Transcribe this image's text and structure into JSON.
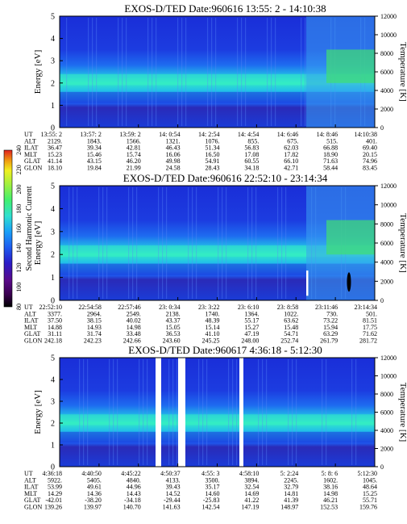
{
  "chart_data": [
    {
      "type": "heatmap",
      "title": "EXOS-D/TED   Date:960616  13:55: 2 - 14:10:38",
      "ylabel": "Energy [eV]",
      "y2label": "Temperature [K]",
      "ylim": [
        0,
        5
      ],
      "y2lim": [
        0,
        12000
      ],
      "yticks": [
        "0",
        "1",
        "2",
        "3",
        "4",
        "5"
      ],
      "y2ticks": [
        "0",
        "2000",
        "4000",
        "6000",
        "8000",
        "10000",
        "12000"
      ],
      "row_labels": [
        "UT",
        "ALT",
        "ILAT",
        "MLT",
        "GLAT",
        "GLON"
      ],
      "columns": [
        [
          "13:55: 2",
          "2129.",
          "36.47",
          "15.23",
          "41.14",
          "18.10"
        ],
        [
          "13:57: 2",
          "1843.",
          "39.34",
          "15.46",
          "43.15",
          "19.84"
        ],
        [
          "13:59: 2",
          "1566.",
          "42.81",
          "15.74",
          "46.20",
          "21.99"
        ],
        [
          "14: 0:54",
          "1321.",
          "46.43",
          "16.06",
          "49.98",
          "24.58"
        ],
        [
          "14: 2:54",
          "1076.",
          "51.34",
          "16.50",
          "54.91",
          "28.43"
        ],
        [
          "14: 4:54",
          "855.",
          "56.83",
          "17.08",
          "60.55",
          "34.18"
        ],
        [
          "14: 6:46",
          "675.",
          "62.03",
          "17.82",
          "66.10",
          "42.71"
        ],
        [
          "14: 8:46",
          "515.",
          "66.88",
          "18.90",
          "71.63",
          "58.44"
        ],
        [
          "14:10:38",
          "401.",
          "69.40",
          "20.15",
          "74.96",
          "83.45"
        ]
      ]
    },
    {
      "type": "heatmap",
      "title": "EXOS-D/TED   Date:960616  22:52:10 - 23:14:34",
      "ylabel": "Energy [eV]",
      "y2label": "Temperature [K]",
      "ylim": [
        0,
        5
      ],
      "y2lim": [
        0,
        12000
      ],
      "yticks": [
        "0",
        "1",
        "2",
        "3",
        "4",
        "5"
      ],
      "y2ticks": [
        "0",
        "2000",
        "4000",
        "6000",
        "8000",
        "10000",
        "12000"
      ],
      "row_labels": [
        "UT",
        "ALT",
        "ILAT",
        "MLT",
        "GLAT",
        "GLON"
      ],
      "columns": [
        [
          "22:52:10",
          "3377.",
          "37.50",
          "14.88",
          "31.11",
          "242.18"
        ],
        [
          "22:54:58",
          "2964.",
          "38.15",
          "14.93",
          "31.74",
          "242.23"
        ],
        [
          "22:57:46",
          "2549.",
          "40.02",
          "14.98",
          "33.48",
          "242.66"
        ],
        [
          "23: 0:34",
          "2138.",
          "43.37",
          "15.05",
          "36.53",
          "243.60"
        ],
        [
          "23: 3:22",
          "1740.",
          "48.39",
          "15.14",
          "41.10",
          "245.25"
        ],
        [
          "23: 6:10",
          "1364.",
          "55.17",
          "15.27",
          "47.19",
          "248.00"
        ],
        [
          "23: 8:58",
          "1022.",
          "63.62",
          "15.48",
          "54.71",
          "252.74"
        ],
        [
          "23:11:46",
          "730.",
          "73.22",
          "15.94",
          "63.29",
          "261.79"
        ],
        [
          "23:14:34",
          "501.",
          "81.51",
          "17.75",
          "71.62",
          "281.72"
        ]
      ]
    },
    {
      "type": "heatmap",
      "title": "EXOS-D/TED   Date:960617  4:36:18 - 5:12:30",
      "ylabel": "Energy [eV]",
      "y2label": "Temperature [K]",
      "ylim": [
        0,
        5
      ],
      "y2lim": [
        0,
        12000
      ],
      "yticks": [
        "0",
        "1",
        "2",
        "3",
        "4",
        "5"
      ],
      "y2ticks": [
        "0",
        "2000",
        "4000",
        "6000",
        "8000",
        "10000",
        "12000"
      ],
      "row_labels": [
        "UT",
        "ALT",
        "ILAT",
        "MLT",
        "GLAT",
        "GLON"
      ],
      "columns": [
        [
          "4:36:18",
          "5922.",
          "53.99",
          "14.29",
          "-42.01",
          "139.26"
        ],
        [
          "4:40:50",
          "5405.",
          "49.61",
          "14.36",
          "-38.20",
          "139.97"
        ],
        [
          "4:45:22",
          "4840.",
          "44.96",
          "14.43",
          "-34.18",
          "140.70"
        ],
        [
          "4:50:37",
          "4133.",
          "39.43",
          "14.52",
          "-29.44",
          "141.63"
        ],
        [
          "4:55: 3",
          "3500.",
          "35.17",
          "14.60",
          "-25.83",
          "142.54"
        ],
        [
          "4:58:10",
          "3894.",
          "32.54",
          "14.69",
          "41.22",
          "147.19"
        ],
        [
          "5: 2:24",
          "2245.",
          "32.79",
          "14.81",
          "41.39",
          "148.97"
        ],
        [
          "5: 8: 6",
          "1602.",
          "38.16",
          "14.98",
          "46.21",
          "152.53"
        ],
        [
          "5:12:30",
          "1045.",
          "48.64",
          "15.25",
          "55.71",
          "159.76"
        ]
      ]
    }
  ],
  "colorbar": {
    "label": "Second Harmonic Current",
    "ticks": [
      "80",
      "100",
      "120",
      "140",
      "160",
      "180",
      "200",
      "220",
      "240"
    ],
    "colors": [
      "#000000",
      "#3a0050",
      "#5a0a8a",
      "#2a1cc8",
      "#1e5cf0",
      "#1aa0f8",
      "#30e0d0",
      "#40f070",
      "#a0f040",
      "#f0f020",
      "#f0a010",
      "#e02020"
    ]
  }
}
